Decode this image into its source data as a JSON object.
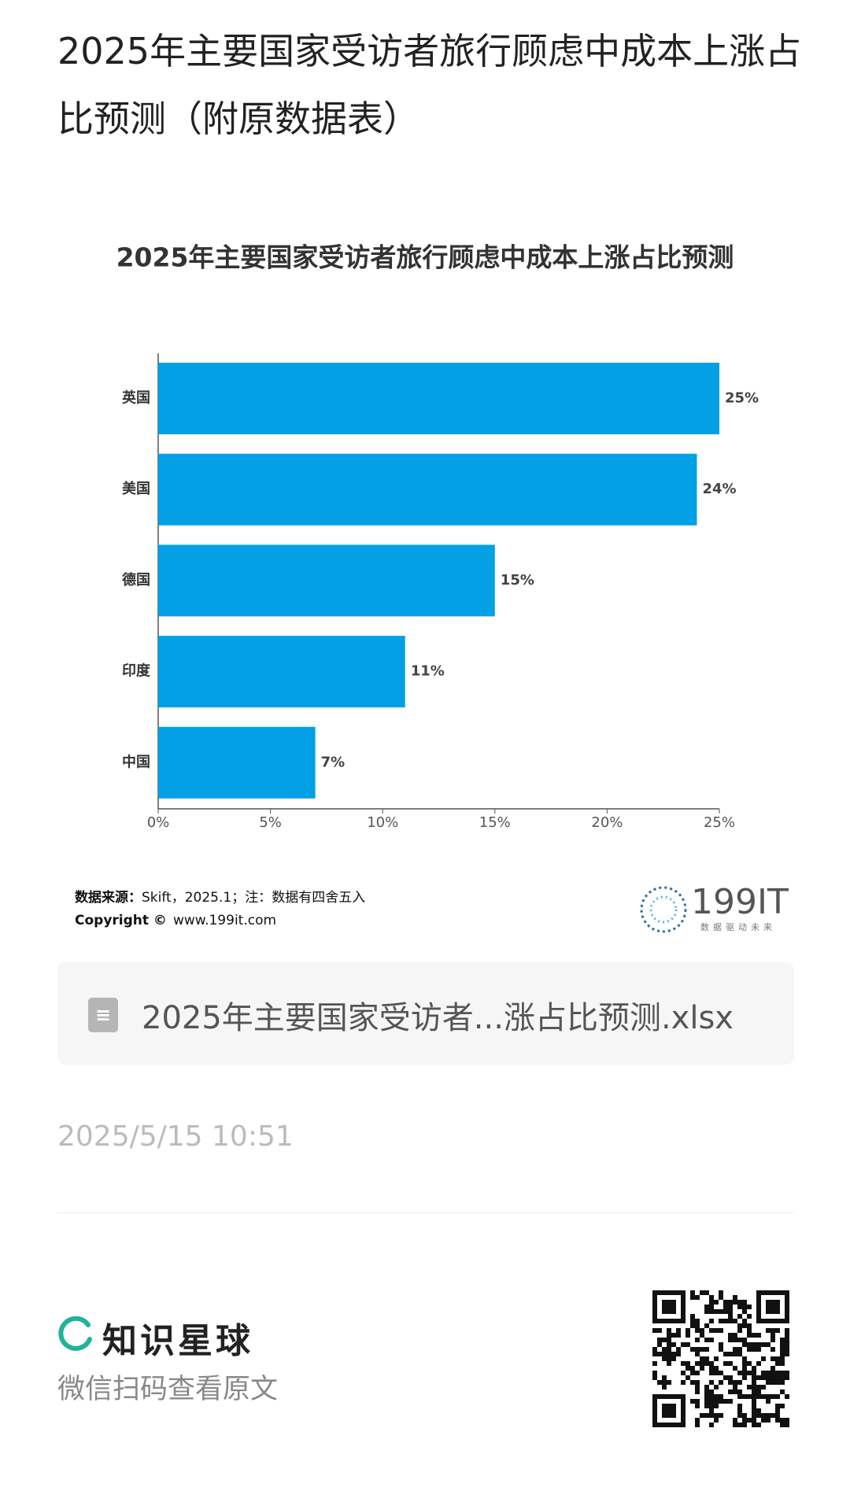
{
  "header": {
    "title": "2025年主要国家受访者旅行顾虑中成本上涨占比预测（附原数据表）"
  },
  "chart_data": {
    "type": "bar",
    "orientation": "horizontal",
    "title": "2025年主要国家受访者旅行顾虑中成本上涨占比预测",
    "categories": [
      "英国",
      "美国",
      "德国",
      "印度",
      "中国"
    ],
    "values": [
      25,
      24,
      15,
      11,
      7
    ],
    "value_labels": [
      "25%",
      "24%",
      "15%",
      "11%",
      "7%"
    ],
    "color": "#03a0e6",
    "xlim": [
      0,
      25
    ],
    "xticks": [
      {
        "value": 0,
        "label": "0%"
      },
      {
        "value": 5,
        "label": "5%"
      },
      {
        "value": 10,
        "label": "10%"
      },
      {
        "value": 15,
        "label": "15%"
      },
      {
        "value": 20,
        "label": "20%"
      },
      {
        "value": 25,
        "label": "25%"
      }
    ],
    "grid": false,
    "source_label": "数据来源：",
    "source": "Skift，2025.1；注：数据有四舍五入",
    "copyright_label": "Copyright ©",
    "copyright": "www.199it.com",
    "logo": "199IT",
    "logo_slogan": "数据驱动未来"
  },
  "attachment": {
    "file_name": "2025年主要国家受访者...涨占比预测.xlsx"
  },
  "timestamp": "2025/5/15 10:51",
  "footer": {
    "brand": "知识星球",
    "caption": "微信扫码查看原文"
  }
}
